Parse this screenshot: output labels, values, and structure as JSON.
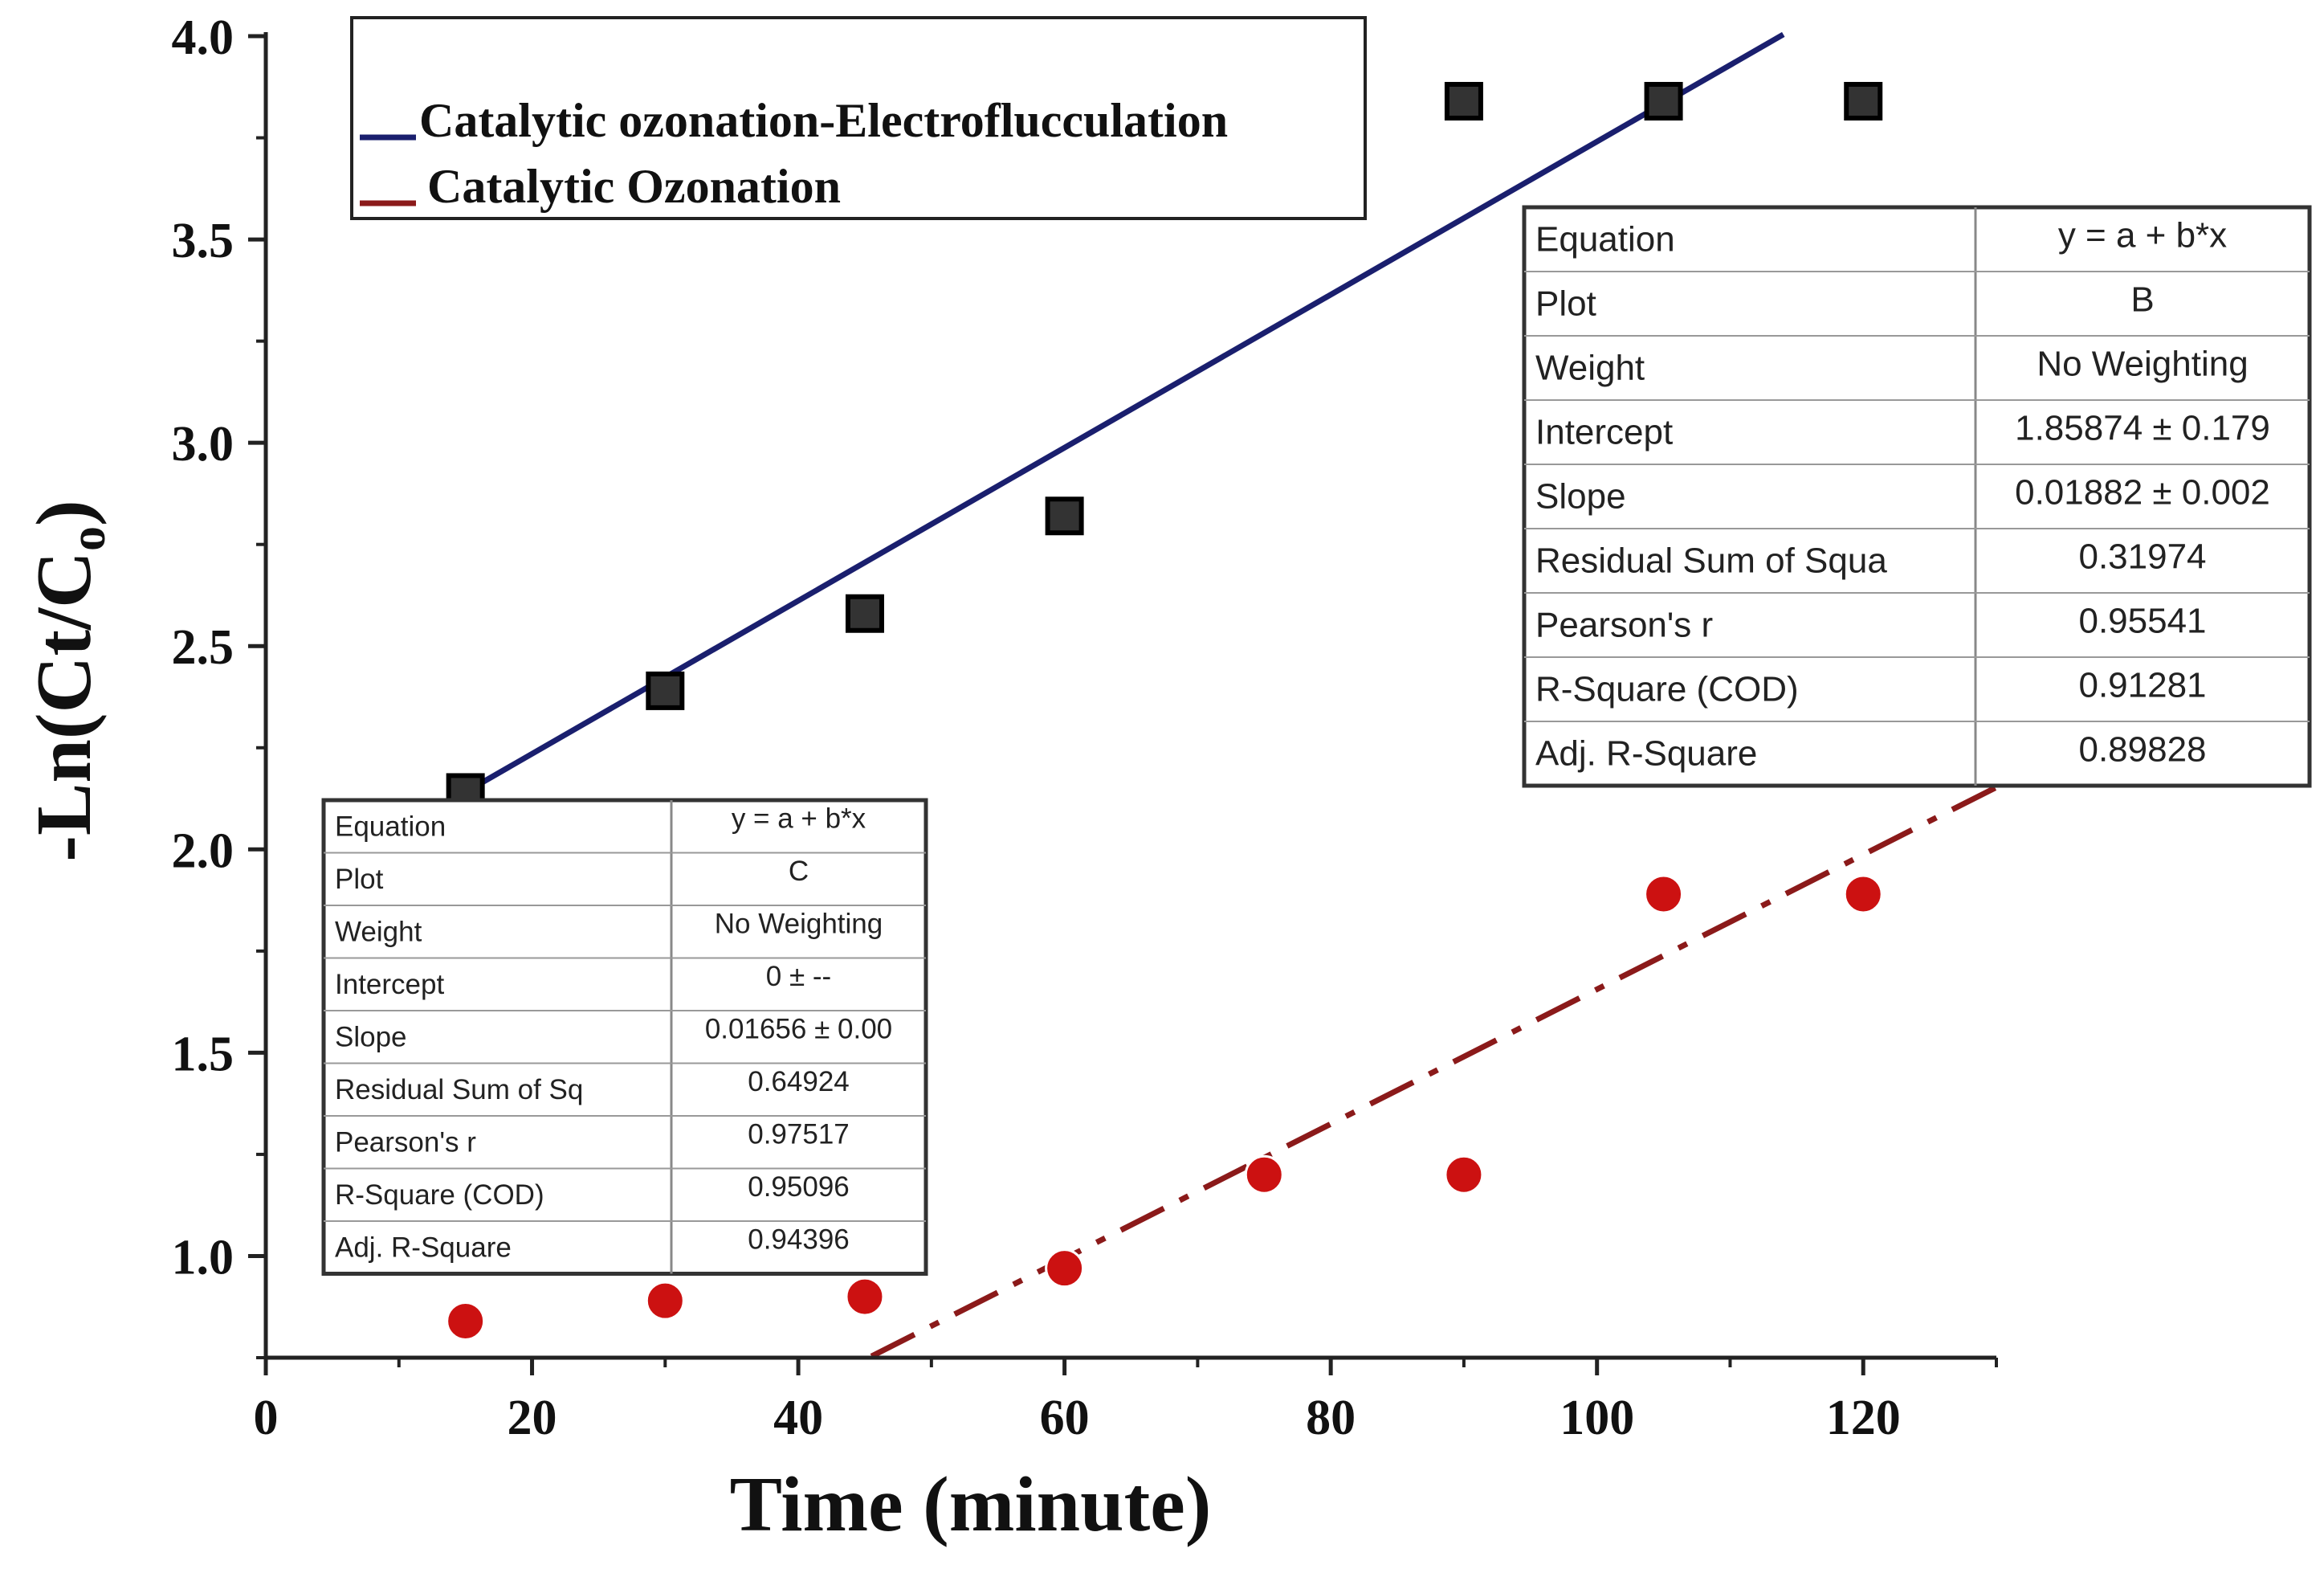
{
  "chart_data": {
    "type": "scatter",
    "title": "",
    "xlabel": "Time (minute)",
    "ylabel": "-Ln(Ct/Co)",
    "ylabel_main": "-Ln(Ct/C",
    "ylabel_sub": "o",
    "ylabel_close": ")",
    "xlim": [
      0,
      130
    ],
    "ylim": [
      0.75,
      4.0
    ],
    "x_ticks": [
      0,
      20,
      40,
      60,
      80,
      100,
      120
    ],
    "y_ticks": [
      1.0,
      1.5,
      2.0,
      2.5,
      3.0,
      3.5,
      4.0
    ],
    "x_tick_labels": [
      "0",
      "20",
      "40",
      "60",
      "80",
      "100",
      "120"
    ],
    "y_tick_labels": [
      "1.0",
      "1.5",
      "2.0",
      "2.5",
      "3.0",
      "3.5",
      "4.0"
    ],
    "series": [
      {
        "name": "Catalytic ozonation-Electroflucculation",
        "marker": "square",
        "marker_color": "#333333",
        "line_color": "#1a1f6e",
        "line_style": "solid",
        "x": [
          15,
          30,
          45,
          60,
          90,
          105,
          120
        ],
        "y": [
          2.14,
          2.39,
          2.58,
          2.82,
          3.84,
          3.84,
          3.84
        ],
        "fit": {
          "intercept": 1.85874,
          "slope": 0.01882,
          "x_range": [
            15,
            114
          ]
        }
      },
      {
        "name": "Catalytic Ozonation",
        "marker": "circle",
        "marker_color": "#cc1111",
        "line_color": "#8b1a1a",
        "line_style": "dashdot",
        "x": [
          15,
          30,
          45,
          60,
          75,
          90,
          105,
          120
        ],
        "y": [
          0.84,
          0.89,
          0.9,
          0.97,
          1.2,
          1.2,
          1.89,
          1.89
        ],
        "fit": {
          "intercept": 0,
          "slope": 0.01656,
          "x_range": [
            45.5,
            130
          ]
        }
      }
    ],
    "legend": {
      "position": "top-left",
      "entries": [
        "Catalytic ozonation-Electroflucculation",
        "Catalytic Ozonation"
      ]
    },
    "annotations": [
      {
        "name": "fit-table-B",
        "rows": [
          [
            "Equation",
            "y = a + b*x"
          ],
          [
            "Plot",
            "B"
          ],
          [
            "Weight",
            "No Weighting"
          ],
          [
            "Intercept",
            "1.85874 ± 0.179"
          ],
          [
            "Slope",
            "0.01882 ± 0.002"
          ],
          [
            "Residual Sum of Squa",
            "0.31974"
          ],
          [
            "Pearson's r",
            "0.95541"
          ],
          [
            "R-Square (COD)",
            "0.91281"
          ],
          [
            "Adj. R-Square",
            "0.89828"
          ]
        ]
      },
      {
        "name": "fit-table-C",
        "rows": [
          [
            "Equation",
            "y = a + b*x"
          ],
          [
            "Plot",
            "C"
          ],
          [
            "Weight",
            "No Weighting"
          ],
          [
            "Intercept",
            "0 ± --"
          ],
          [
            "Slope",
            "0.01656 ± 0.00"
          ],
          [
            "Residual Sum of Sq",
            "0.64924"
          ],
          [
            "Pearson's r",
            "0.97517"
          ],
          [
            "R-Square (COD)",
            "0.95096"
          ],
          [
            "Adj. R-Square",
            "0.94396"
          ]
        ]
      }
    ]
  }
}
